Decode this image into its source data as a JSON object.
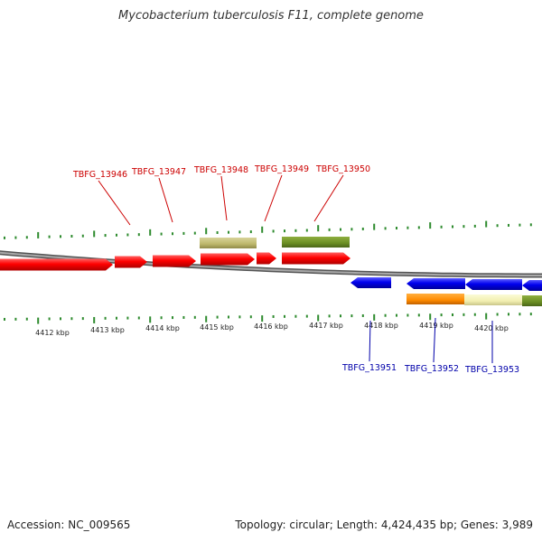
{
  "title": "Mycobacterium tuberculosis F11, complete genome",
  "footer": {
    "accession": "Accession: NC_009565",
    "topology": "Topology: circular; Length: 4,424,435 bp; Genes: 3,989"
  },
  "colors": {
    "forward_gene": "#ff0000",
    "reverse_gene": "#0000ff",
    "backbone": "#7a7a7a",
    "ticks": "#2e8b2e",
    "label_forward": "#cc0000",
    "label_reverse": "#0000aa",
    "olive_feature": "#6b8e23",
    "khaki_feature": "#bdb76b",
    "orange_feature": "#ff8c00",
    "pale_feature": "#f5f5b0"
  },
  "scale_labels": [
    "4412 kbp",
    "4413 kbp",
    "4414 kbp",
    "4415 kbp",
    "4416 kbp",
    "4417 kbp",
    "4418 kbp",
    "4419 kbp",
    "4420 kbp"
  ],
  "forward_labels": [
    "TBFG_13946",
    "TBFG_13947",
    "TBFG_13948",
    "TBFG_13949",
    "TBFG_13950"
  ],
  "reverse_labels": [
    "TBFG_13951",
    "TBFG_13952",
    "TBFG_13953"
  ]
}
